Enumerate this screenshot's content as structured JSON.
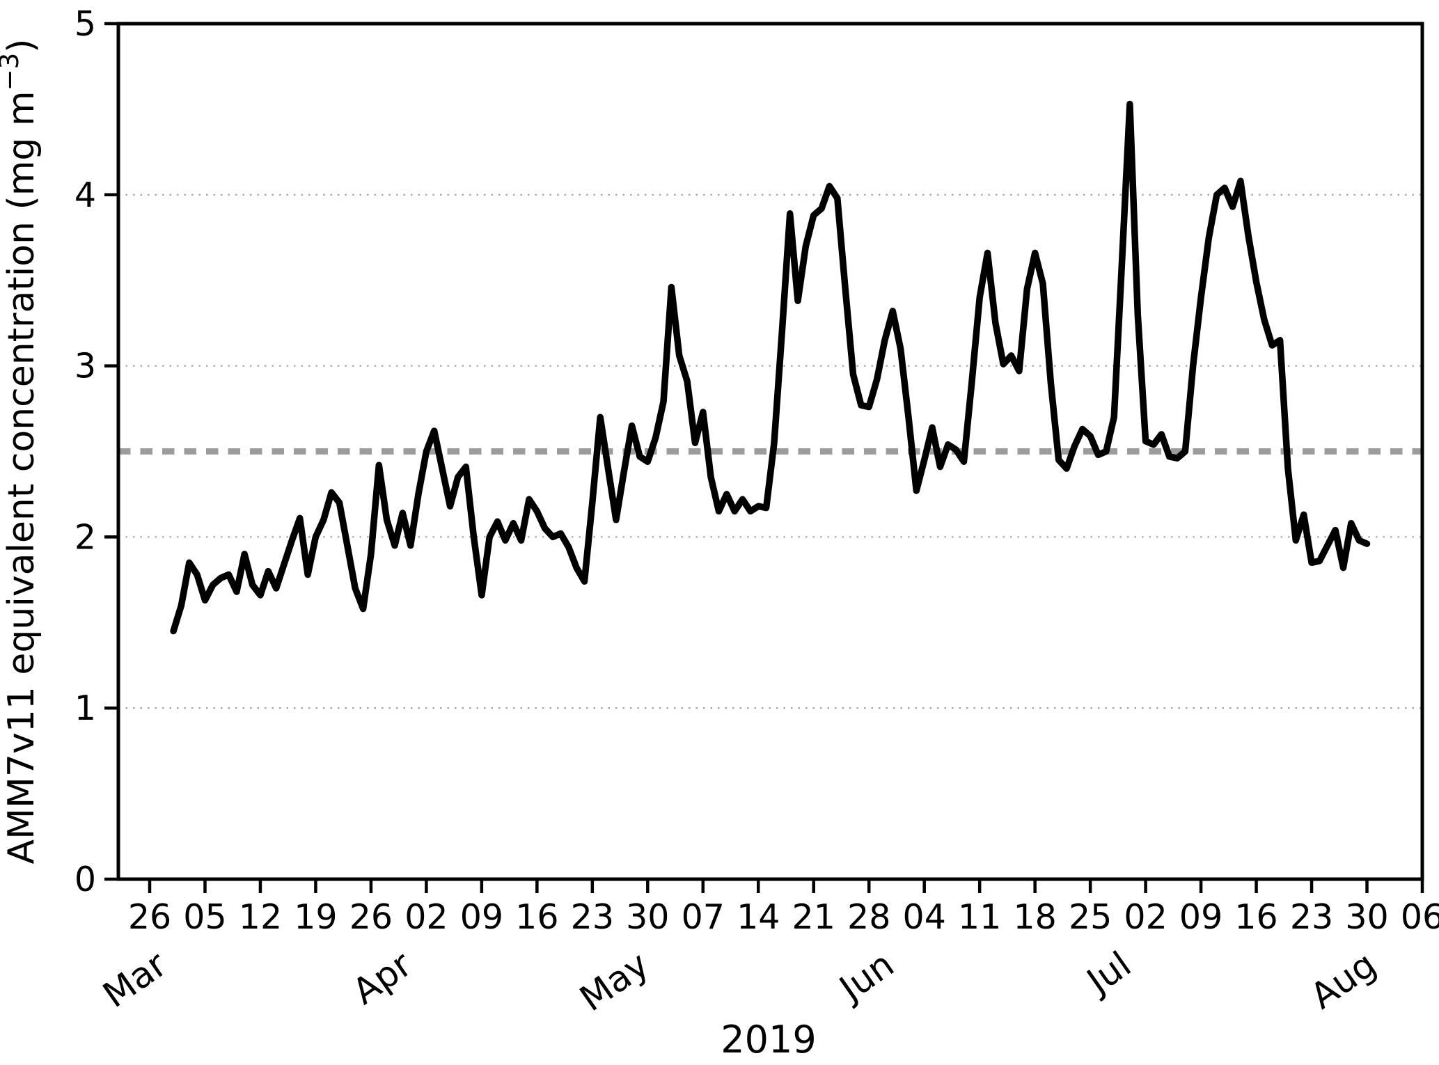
{
  "figure": {
    "year_label": "2019",
    "y_axis": {
      "label_prefix": "AMM7v11 equivalent concentration (mg m",
      "label_exponent": "−3",
      "label_suffix": ")",
      "tick_labels": [
        "0",
        "1",
        "2",
        "3",
        "4",
        "5"
      ],
      "ticks": [
        0,
        1,
        2,
        3,
        4,
        5
      ]
    },
    "x_axis": {
      "tick_dates": [
        "2019-02-26",
        "2019-03-05",
        "2019-03-12",
        "2019-03-19",
        "2019-03-26",
        "2019-04-02",
        "2019-04-09",
        "2019-04-16",
        "2019-04-23",
        "2019-04-30",
        "2019-05-07",
        "2019-05-14",
        "2019-05-21",
        "2019-05-28",
        "2019-06-04",
        "2019-06-11",
        "2019-06-18",
        "2019-06-25",
        "2019-07-02",
        "2019-07-09",
        "2019-07-16",
        "2019-07-23",
        "2019-07-30",
        "2019-08-06"
      ],
      "tick_labels": [
        "26",
        "05",
        "12",
        "19",
        "26",
        "02",
        "09",
        "16",
        "23",
        "30",
        "07",
        "14",
        "21",
        "28",
        "04",
        "11",
        "18",
        "25",
        "02",
        "09",
        "16",
        "23",
        "30",
        "06"
      ],
      "month_labels": [
        {
          "label": "Mar",
          "date": "2019-03-01"
        },
        {
          "label": "Apr",
          "date": "2019-04-01"
        },
        {
          "label": "May",
          "date": "2019-05-01"
        },
        {
          "label": "Jun",
          "date": "2019-06-01"
        },
        {
          "label": "Jul",
          "date": "2019-07-01"
        },
        {
          "label": "Aug",
          "date": "2019-08-01"
        }
      ]
    },
    "colors": {
      "line": "#000000",
      "grid": "#a6a6a6",
      "threshold": "#9c9c9c",
      "axes": "#000000"
    }
  },
  "chart_data": {
    "type": "line",
    "title": "",
    "xlabel": "2019",
    "ylabel": "AMM7v11 equivalent concentration (mg m−3)",
    "ylim": [
      0,
      5
    ],
    "xlim_dates": [
      "2019-02-22",
      "2019-08-06"
    ],
    "gridlines_y": [
      1,
      2,
      3,
      4
    ],
    "grid": "dotted horizontal",
    "legend": "none",
    "reference_line": {
      "value": 2.5,
      "style": "bold gray dashed"
    },
    "start_date": "2019-03-01",
    "frequency": "daily",
    "series": [
      {
        "name": "AMM7v11 equivalent concentration (mg m−3)",
        "values": [
          1.45,
          1.6,
          1.85,
          1.78,
          1.63,
          1.72,
          1.76,
          1.78,
          1.68,
          1.9,
          1.72,
          1.66,
          1.8,
          1.7,
          1.84,
          1.98,
          2.11,
          1.78,
          2.0,
          2.1,
          2.26,
          2.2,
          1.95,
          1.7,
          1.58,
          1.9,
          2.42,
          2.1,
          1.95,
          2.14,
          1.95,
          2.25,
          2.5,
          2.62,
          2.4,
          2.18,
          2.35,
          2.41,
          2.0,
          1.66,
          2.0,
          2.09,
          1.98,
          2.08,
          1.98,
          2.22,
          2.15,
          2.05,
          2.0,
          2.02,
          1.94,
          1.82,
          1.74,
          2.2,
          2.7,
          2.4,
          2.1,
          2.38,
          2.65,
          2.47,
          2.44,
          2.58,
          2.79,
          3.46,
          3.06,
          2.91,
          2.55,
          2.73,
          2.35,
          2.15,
          2.25,
          2.15,
          2.22,
          2.15,
          2.18,
          2.17,
          2.55,
          3.2,
          3.89,
          3.38,
          3.7,
          3.88,
          3.92,
          4.05,
          3.98,
          3.45,
          2.95,
          2.77,
          2.76,
          2.92,
          3.15,
          3.32,
          3.1,
          2.7,
          2.27,
          2.45,
          2.64,
          2.41,
          2.54,
          2.51,
          2.44,
          2.9,
          3.4,
          3.66,
          3.25,
          3.01,
          3.06,
          2.97,
          3.45,
          3.66,
          3.48,
          2.9,
          2.45,
          2.4,
          2.53,
          2.63,
          2.59,
          2.48,
          2.5,
          2.7,
          3.6,
          4.53,
          3.3,
          2.56,
          2.54,
          2.6,
          2.47,
          2.46,
          2.5,
          3.0,
          3.4,
          3.75,
          4.0,
          4.04,
          3.93,
          4.08,
          3.76,
          3.49,
          3.27,
          3.12,
          3.15,
          2.4,
          1.98,
          2.13,
          1.85,
          1.86,
          1.95,
          2.04,
          1.82,
          2.08,
          1.98,
          1.96
        ]
      }
    ]
  }
}
